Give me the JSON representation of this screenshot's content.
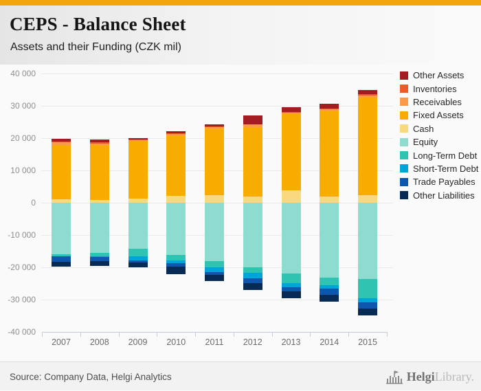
{
  "header": {
    "title": "CEPS - Balance Sheet",
    "subtitle": "Assets and their Funding (CZK mil)"
  },
  "footer": {
    "source": "Source: Company Data, Helgi Analytics",
    "logo_primary": "Helgi",
    "logo_secondary": "Library."
  },
  "chart_data": {
    "type": "bar",
    "stacked": true,
    "orientation": "vertical",
    "title": "CEPS - Balance Sheet",
    "subtitle": "Assets and their Funding (CZK mil)",
    "unit": "CZK mil",
    "categories": [
      "2007",
      "2008",
      "2009",
      "2010",
      "2011",
      "2012",
      "2013",
      "2014",
      "2015"
    ],
    "ylim": [
      -40000,
      40000
    ],
    "ytick_step": 10000,
    "grid": true,
    "legend_position": "right",
    "series": [
      {
        "name": "Other Assets",
        "side": "assets",
        "color": "#A21C21",
        "values": [
          900,
          800,
          500,
          700,
          650,
          2800,
          1400,
          1500,
          1300
        ]
      },
      {
        "name": "Inventories",
        "side": "assets",
        "color": "#F05A28",
        "values": [
          100,
          300,
          200,
          200,
          150,
          100,
          200,
          200,
          500
        ]
      },
      {
        "name": "Receivables",
        "side": "assets",
        "color": "#F99B4A",
        "values": [
          1200,
          600,
          400,
          500,
          500,
          800,
          500,
          400,
          500
        ]
      },
      {
        "name": "Fixed Assets",
        "side": "assets",
        "color": "#F9AC00",
        "values": [
          16500,
          16900,
          17700,
          18700,
          20600,
          21400,
          23600,
          26700,
          30300
        ]
      },
      {
        "name": "Cash",
        "side": "assets",
        "color": "#FAD87F",
        "values": [
          1100,
          900,
          1300,
          2100,
          2400,
          2000,
          3800,
          1900,
          2300
        ]
      },
      {
        "name": "Equity",
        "side": "funding",
        "color": "#8EDCD0",
        "values": [
          15900,
          15500,
          14300,
          16200,
          18000,
          19900,
          21900,
          23100,
          23700
        ]
      },
      {
        "name": "Long-Term Debt",
        "side": "funding",
        "color": "#2FC4B2",
        "values": [
          600,
          1100,
          2400,
          1600,
          2100,
          1700,
          2900,
          2400,
          5900
        ]
      },
      {
        "name": "Short-Term Debt",
        "side": "funding",
        "color": "#00A5D8",
        "values": [
          100,
          200,
          1100,
          1000,
          1300,
          1800,
          1400,
          1100,
          1200
        ]
      },
      {
        "name": "Trade Payables",
        "side": "funding",
        "color": "#0D57AE",
        "values": [
          1700,
          1300,
          800,
          900,
          1000,
          1500,
          1300,
          2000,
          1900
        ]
      },
      {
        "name": "Other Liabilities",
        "side": "funding",
        "color": "#082B55",
        "values": [
          1500,
          1400,
          1500,
          2500,
          1900,
          2200,
          2000,
          2100,
          2200
        ]
      }
    ]
  }
}
